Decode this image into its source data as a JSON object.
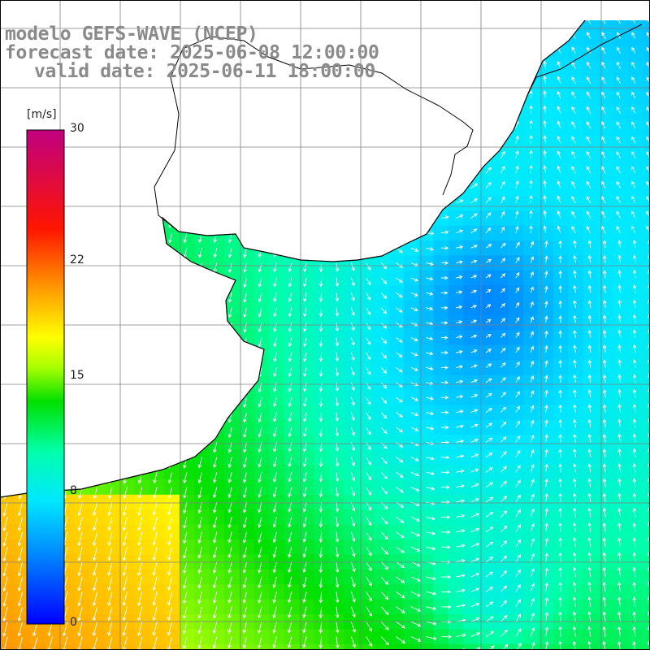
{
  "title": {
    "line1": "modelo GEFS-WAVE (NCEP)",
    "line2": "forecast date: 2025-06-08 12:00:00",
    "line3": "valid date: 2025-06-11 18:00:00"
  },
  "colorbar": {
    "units": "[m/s]",
    "range": [
      0,
      30
    ],
    "ticks": [
      {
        "value": 30,
        "label": "30"
      },
      {
        "value": 22,
        "label": "22"
      },
      {
        "value": 15,
        "label": "15"
      },
      {
        "value": 8,
        "label": "8"
      },
      {
        "value": 0,
        "label": "0"
      }
    ],
    "colors": [
      "#0000ff",
      "#00c8ff",
      "#00ffff",
      "#00ff00",
      "#ffff00",
      "#ff8800",
      "#ff0000",
      "#c00080"
    ]
  },
  "map": {
    "variable": "wind speed and direction",
    "land_color": "#ffffff",
    "coast_color": "#000000",
    "grid_color": "#808080"
  }
}
